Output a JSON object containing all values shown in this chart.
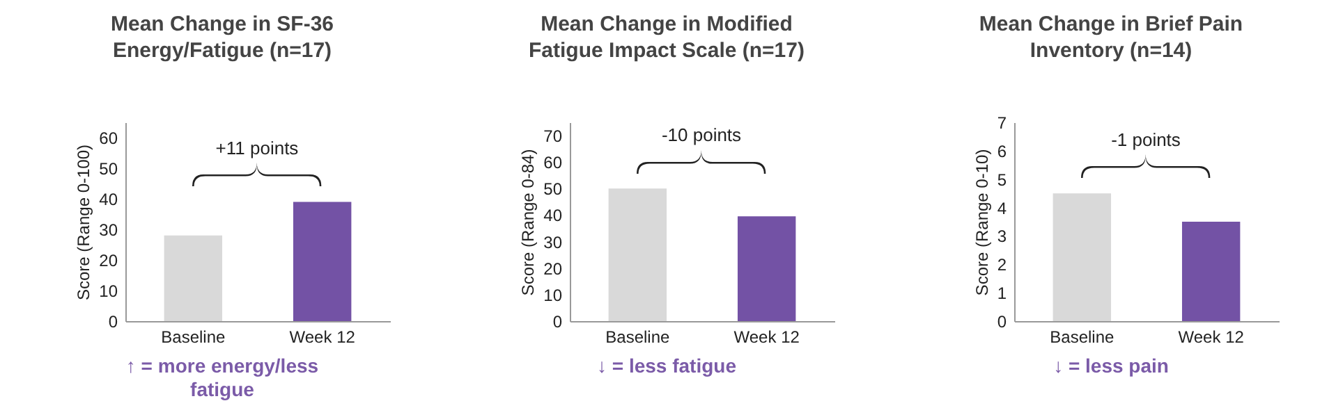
{
  "chart_data": [
    {
      "type": "bar",
      "title": "Mean Change in SF-36 Energy/Fatigue (n=17)",
      "ylabel": "Score (Range 0-100)",
      "categories": [
        "Baseline",
        "Week 12"
      ],
      "values": [
        28,
        39
      ],
      "colors": [
        "#d9d9d9",
        "#7352a5"
      ],
      "ylim": [
        0,
        65
      ],
      "yticks": [
        0,
        10,
        20,
        30,
        40,
        50,
        60
      ],
      "annotations": [
        "+11 points",
        "↑ = more energy/less fatigue"
      ]
    },
    {
      "type": "bar",
      "title": "Mean Change in Modified Fatigue Impact Scale (n=17)",
      "ylabel": "Score (Range 0-84)",
      "categories": [
        "Baseline",
        "Week 12"
      ],
      "values": [
        50,
        39.5
      ],
      "colors": [
        "#d9d9d9",
        "#7352a5"
      ],
      "ylim": [
        0,
        75
      ],
      "yticks": [
        0,
        10,
        20,
        30,
        40,
        50,
        60,
        70
      ],
      "annotations": [
        "-10 points",
        "↓ = less fatigue"
      ]
    },
    {
      "type": "bar",
      "title": "Mean Change in Brief Pain Inventory (n=14)",
      "ylabel": "Score (Range 0-10)",
      "categories": [
        "Baseline",
        "Week 12"
      ],
      "values": [
        4.5,
        3.5
      ],
      "colors": [
        "#d9d9d9",
        "#7352a5"
      ],
      "ylim": [
        0,
        7
      ],
      "yticks": [
        0,
        1,
        2,
        3,
        4,
        5,
        6,
        7
      ],
      "annotations": [
        "-1 points",
        "↓ = less pain"
      ]
    }
  ]
}
